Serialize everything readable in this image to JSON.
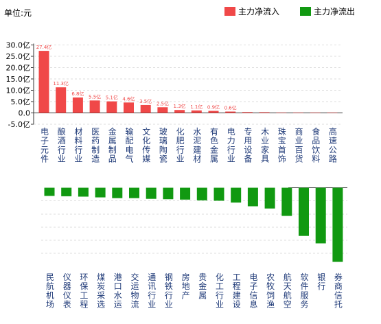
{
  "unit_label": "单位:元",
  "legend": [
    {
      "label": "主力净流入",
      "color": "#f04848"
    },
    {
      "label": "主力净流出",
      "color": "#119911"
    }
  ],
  "chart_data": [
    {
      "type": "bar",
      "series_name": "主力净流入",
      "color": "#f04848",
      "ylim": [
        -5,
        30
      ],
      "yticks": [
        "30.0亿",
        "25.0亿",
        "20.0亿",
        "15.0亿",
        "10.0亿",
        "5.0亿",
        "0.0",
        "-5.0亿"
      ],
      "categories": [
        "电子元件",
        "酿酒行业",
        "材料行业",
        "医药制造",
        "金属制品",
        "输配电气",
        "文化传媒",
        "玻璃陶瓷",
        "化肥行业",
        "水泥建材",
        "有色金属",
        "电力行业",
        "专用设备",
        "木业家具",
        "珠宝首饰",
        "商业百货",
        "食品饮料",
        "高速公路"
      ],
      "values": [
        27.4,
        11.3,
        6.8,
        5.5,
        5.1,
        4.6,
        3.5,
        2.5,
        1.3,
        1.1,
        0.9,
        0.6,
        0.35,
        0.3,
        0.15,
        0.1,
        0.05,
        0.03
      ],
      "data_labels": [
        "27.4亿",
        "11.3亿",
        "6.8亿",
        "5.5亿",
        "5.1亿",
        "4.6亿",
        "3.5亿",
        "2.5亿",
        "1.3亿",
        "1.1亿",
        "0.9亿",
        "0.6亿",
        "",
        "",
        "",
        "",
        "",
        ""
      ]
    },
    {
      "type": "bar",
      "series_name": "主力净流出",
      "color": "#119911",
      "categories": [
        "民航机场",
        "仪器仪表",
        "环保工程",
        "煤炭采选",
        "港口水运",
        "交运物流",
        "通讯行业",
        "钢铁行业",
        "房地产",
        "贵金属",
        "化工行业",
        "工程建设",
        "电子信息",
        "农牧饲渔",
        "航天航空",
        "软件服务",
        "银行",
        "券商信托"
      ],
      "values": [
        -1.1,
        -1.15,
        -1.2,
        -1.3,
        -1.4,
        -1.4,
        -1.5,
        -1.55,
        -1.6,
        -1.7,
        -1.75,
        -2.0,
        -2.5,
        -2.8,
        -3.8,
        -6.5,
        -7.5,
        -10.0
      ]
    }
  ]
}
